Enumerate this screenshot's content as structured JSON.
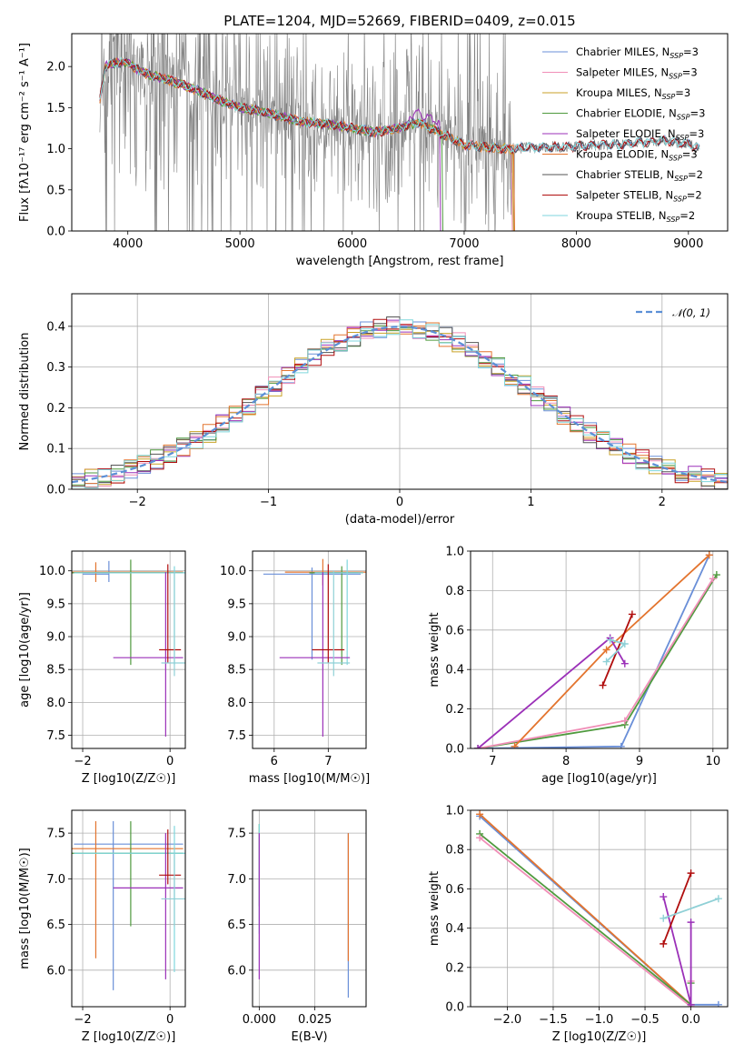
{
  "figure": {
    "title": "PLATE=1204, MJD=52669, FIBERID=0409, z=0.015"
  },
  "legend": {
    "entries": [
      {
        "name": "Chabrier MILES, N",
        "sub": "SSP",
        "tail": "=3",
        "color": "#6a8fd8"
      },
      {
        "name": "Salpeter MILES, N",
        "sub": "SSP",
        "tail": "=3",
        "color": "#f08fb8"
      },
      {
        "name": "Kroupa MILES, N",
        "sub": "SSP",
        "tail": "=3",
        "color": "#c9a227"
      },
      {
        "name": "Chabrier ELODIE, N",
        "sub": "SSP",
        "tail": "=3",
        "color": "#4f9a3e"
      },
      {
        "name": "Salpeter ELODIE, N",
        "sub": "SSP",
        "tail": "=3",
        "color": "#9b30b8"
      },
      {
        "name": "Kroupa ELODIE, N",
        "sub": "SSP",
        "tail": "=3",
        "color": "#e3742e"
      },
      {
        "name": "Chabrier STELIB, N",
        "sub": "SSP",
        "tail": "=2",
        "color": "#555555"
      },
      {
        "name": "Salpeter STELIB, N",
        "sub": "SSP",
        "tail": "=2",
        "color": "#b00d0d"
      },
      {
        "name": "Kroupa STELIB, N",
        "sub": "SSP",
        "tail": "=2",
        "color": "#7fd6dc"
      }
    ],
    "normal_label": "𝒩(0, 1)"
  },
  "chart_data": [
    {
      "id": "spectrum",
      "type": "line",
      "xlabel": "wavelength [Angstrom, rest frame]",
      "ylabel": "Flux [fλ10⁻¹⁷ erg cm⁻² s⁻¹ A⁻¹]",
      "xlim": [
        3500,
        9350
      ],
      "ylim": [
        0,
        2.4
      ],
      "xticks": [
        4000,
        5000,
        6000,
        7000,
        8000,
        9000
      ],
      "yticks": [
        0.0,
        0.5,
        1.0,
        1.5,
        2.0
      ],
      "data_color": "#808080",
      "continuum": {
        "x": [
          3750,
          3800,
          3900,
          4000,
          4100,
          4200,
          4400,
          4600,
          4800,
          5000,
          5200,
          5400,
          5600,
          5800,
          6000,
          6200,
          6400,
          6600,
          6800,
          7000,
          7200,
          7400,
          7600,
          7800,
          8000,
          8200,
          8400,
          8600,
          8800,
          9000,
          9100
        ],
        "y": [
          1.6,
          2.0,
          2.05,
          2.05,
          1.95,
          1.9,
          1.82,
          1.72,
          1.6,
          1.5,
          1.45,
          1.38,
          1.32,
          1.3,
          1.25,
          1.2,
          1.25,
          1.32,
          1.18,
          1.05,
          1.02,
          1.0,
          1.02,
          1.02,
          1.03,
          1.05,
          1.05,
          1.08,
          1.1,
          1.05,
          1.0
        ]
      }
    },
    {
      "id": "residuals",
      "type": "histogram",
      "xlabel": "(data-model)/error",
      "ylabel": "Normed distribution",
      "xlim": [
        -2.5,
        2.5
      ],
      "ylim": [
        0,
        0.48
      ],
      "xticks": [
        -2,
        -1,
        0,
        1,
        2
      ],
      "yticks": [
        0.0,
        0.1,
        0.2,
        0.3,
        0.4
      ],
      "bin_width": 0.1,
      "normal": {
        "mu": 0,
        "sigma": 1,
        "color": "#5b8fd6"
      }
    },
    {
      "id": "age_vs_Z",
      "type": "errorbar",
      "xlabel": "Z [log10(Z/Z☉)]",
      "ylabel": "age  [log10(age/yr)]",
      "xlim": [
        -2.25,
        0.35
      ],
      "ylim": [
        7.3,
        10.3
      ],
      "xticks": [
        -2,
        0
      ],
      "yticks": [
        7.5,
        8.0,
        8.5,
        9.0,
        9.5,
        10.0
      ],
      "points": [
        {
          "c": 0,
          "x": -1.4,
          "y": 9.95,
          "xe": [
            0.6,
            0.0
          ],
          "ye": [
            0.12,
            0.2
          ]
        },
        {
          "c": 5,
          "x": -1.7,
          "y": 9.98,
          "xe": [
            0.6,
            2.0
          ],
          "ye": [
            0.15,
            0.15
          ]
        },
        {
          "c": 3,
          "x": -0.9,
          "y": 9.97,
          "xe": [
            1.4,
            1.2
          ],
          "ye": [
            1.4,
            0.2
          ]
        },
        {
          "c": 8,
          "x": 0.1,
          "y": 9.97,
          "xe": [
            2.3,
            0.3
          ],
          "ye": [
            1.4,
            0.1
          ]
        },
        {
          "c": 4,
          "x": -0.1,
          "y": 8.68,
          "xe": [
            1.2,
            0.4
          ],
          "ye": [
            1.2,
            1.3
          ]
        },
        {
          "c": 7,
          "x": -0.05,
          "y": 8.8,
          "xe": [
            0.2,
            0.3
          ],
          "ye": [
            0.2,
            1.3
          ]
        },
        {
          "c": 9,
          "x": 0.1,
          "y": 8.6,
          "xe": [
            0.3,
            0.3
          ],
          "ye": [
            0.2,
            1.4
          ]
        }
      ]
    },
    {
      "id": "age_vs_mass",
      "type": "errorbar",
      "xlabel": "mass [log10(M/M☉)]",
      "ylabel": "",
      "xlim": [
        5.6,
        7.7
      ],
      "ylim": [
        7.3,
        10.3
      ],
      "xticks": [
        6,
        7
      ],
      "yticks": [
        7.5,
        8.0,
        8.5,
        9.0,
        9.5,
        10.0
      ],
      "points": [
        {
          "c": 0,
          "x": 6.7,
          "y": 9.95,
          "xe": [
            0.9,
            0.9
          ],
          "ye": [
            1.3,
            0.1
          ]
        },
        {
          "c": 5,
          "x": 6.9,
          "y": 9.98,
          "xe": [
            0.7,
            0.8
          ],
          "ye": [
            0.2,
            0.2
          ]
        },
        {
          "c": 3,
          "x": 7.25,
          "y": 9.97,
          "xe": [
            0.6,
            0.3
          ],
          "ye": [
            1.4,
            0.1
          ]
        },
        {
          "c": 8,
          "x": 7.35,
          "y": 9.97,
          "xe": [
            0.6,
            0.3
          ],
          "ye": [
            1.4,
            0.2
          ]
        },
        {
          "c": 4,
          "x": 6.9,
          "y": 8.68,
          "xe": [
            0.8,
            0.5
          ],
          "ye": [
            1.2,
            1.3
          ]
        },
        {
          "c": 7,
          "x": 7.0,
          "y": 8.8,
          "xe": [
            0.3,
            0.3
          ],
          "ye": [
            0.2,
            1.3
          ]
        },
        {
          "c": 9,
          "x": 7.1,
          "y": 8.6,
          "xe": [
            0.3,
            0.3
          ],
          "ye": [
            0.2,
            1.4
          ]
        }
      ]
    },
    {
      "id": "weight_vs_age",
      "type": "line",
      "xlabel": "age  [log10(age/yr)]",
      "ylabel": "mass weight",
      "xlim": [
        6.7,
        10.2
      ],
      "ylim": [
        0,
        1.0
      ],
      "xticks": [
        7,
        8,
        9,
        10
      ],
      "yticks": [
        0.0,
        0.2,
        0.4,
        0.6,
        0.8,
        1.0
      ],
      "series": [
        {
          "c": 0,
          "x": [
            6.8,
            8.75,
            9.95
          ],
          "y": [
            0.0,
            0.01,
            0.98
          ]
        },
        {
          "c": 3,
          "x": [
            6.8,
            8.8,
            10.05
          ],
          "y": [
            0.0,
            0.12,
            0.88
          ]
        },
        {
          "c": 1,
          "x": [
            6.8,
            8.8,
            10.0
          ],
          "y": [
            0.0,
            0.14,
            0.86
          ]
        },
        {
          "c": 5,
          "x": [
            7.3,
            8.55,
            9.95
          ],
          "y": [
            0.01,
            0.5,
            0.98
          ]
        },
        {
          "c": 4,
          "x": [
            6.8,
            8.6,
            8.8
          ],
          "y": [
            0.0,
            0.56,
            0.43
          ]
        },
        {
          "c": 7,
          "x": [
            8.5,
            8.9
          ],
          "y": [
            0.32,
            0.68
          ]
        },
        {
          "c": 9,
          "x": [
            8.6,
            8.8,
            8.55
          ],
          "y": [
            0.55,
            0.53,
            0.44
          ]
        }
      ]
    },
    {
      "id": "mass_vs_Z",
      "type": "errorbar",
      "xlabel": "Z [log10(Z/Z☉)]",
      "ylabel": "mass [log10(M/M☉)]",
      "xlim": [
        -2.25,
        0.35
      ],
      "ylim": [
        5.6,
        7.75
      ],
      "xticks": [
        -2,
        0
      ],
      "yticks": [
        6.0,
        6.5,
        7.0,
        7.5
      ],
      "points": [
        {
          "c": 0,
          "x": -1.3,
          "y": 7.38,
          "xe": [
            0.9,
            1.6
          ],
          "ye": [
            1.6,
            0.25
          ]
        },
        {
          "c": 5,
          "x": -1.7,
          "y": 7.33,
          "xe": [
            0.6,
            2.0
          ],
          "ye": [
            1.2,
            0.3
          ]
        },
        {
          "c": 3,
          "x": -0.9,
          "y": 7.28,
          "xe": [
            1.4,
            1.2
          ],
          "ye": [
            0.8,
            0.35
          ]
        },
        {
          "c": 8,
          "x": 0.1,
          "y": 7.28,
          "xe": [
            2.3,
            0.3
          ],
          "ye": [
            1.3,
            0.3
          ]
        },
        {
          "c": 4,
          "x": -0.1,
          "y": 6.9,
          "xe": [
            1.2,
            0.4
          ],
          "ye": [
            1.0,
            0.6
          ]
        },
        {
          "c": 7,
          "x": -0.05,
          "y": 7.04,
          "xe": [
            0.2,
            0.3
          ],
          "ye": [
            0.1,
            0.5
          ]
        },
        {
          "c": 9,
          "x": 0.1,
          "y": 6.78,
          "xe": [
            0.3,
            0.3
          ],
          "ye": [
            0.3,
            0.5
          ]
        }
      ]
    },
    {
      "id": "mass_vs_EBV",
      "type": "errorbar",
      "xlabel": "E(B-V)",
      "ylabel": "",
      "xlim": [
        -0.003,
        0.048
      ],
      "ylim": [
        5.6,
        7.75
      ],
      "xticks": [
        0.0,
        0.025
      ],
      "xtick_labels": [
        "0.000",
        "0.025"
      ],
      "yticks": [
        6.0,
        6.5,
        7.0,
        7.5
      ],
      "points": [
        {
          "c": 0,
          "x": 0.04,
          "y": 6.9,
          "xe": [
            0,
            0
          ],
          "ye": [
            1.2,
            0.6
          ]
        },
        {
          "c": 5,
          "x": 0.04,
          "y": 7.0,
          "xe": [
            0,
            0
          ],
          "ye": [
            0.9,
            0.5
          ]
        },
        {
          "c": 3,
          "x": 0.0,
          "y": 7.2,
          "xe": [
            0,
            0
          ],
          "ye": [
            0.5,
            0.4
          ]
        },
        {
          "c": 8,
          "x": 0.0,
          "y": 7.1,
          "xe": [
            0,
            0
          ],
          "ye": [
            0.7,
            0.5
          ]
        },
        {
          "c": 4,
          "x": 0.0,
          "y": 6.8,
          "xe": [
            0,
            0
          ],
          "ye": [
            0.9,
            0.7
          ]
        }
      ]
    },
    {
      "id": "weight_vs_Z",
      "type": "line",
      "xlabel": "Z [log10(Z/Z☉)]",
      "ylabel": "mass weight",
      "xlim": [
        -2.4,
        0.4
      ],
      "ylim": [
        0,
        1.0
      ],
      "xticks": [
        -2.0,
        -1.5,
        -1.0,
        -0.5,
        0.0
      ],
      "yticks": [
        0.0,
        0.2,
        0.4,
        0.6,
        0.8,
        1.0
      ],
      "series": [
        {
          "c": 0,
          "x": [
            -2.3,
            0.0,
            0.3
          ],
          "y": [
            0.97,
            0.01,
            0.01
          ]
        },
        {
          "c": 5,
          "x": [
            -2.3,
            0.0
          ],
          "y": [
            0.98,
            0.01
          ]
        },
        {
          "c": 3,
          "x": [
            -2.3,
            0.0,
            0.0
          ],
          "y": [
            0.88,
            0.01,
            0.12
          ]
        },
        {
          "c": 1,
          "x": [
            -2.3,
            0.0,
            0.0
          ],
          "y": [
            0.86,
            0.0,
            0.13
          ]
        },
        {
          "c": 4,
          "x": [
            -0.3,
            0.0,
            0.0
          ],
          "y": [
            0.56,
            0.01,
            0.43
          ]
        },
        {
          "c": 7,
          "x": [
            -0.3,
            0.0
          ],
          "y": [
            0.32,
            0.68
          ]
        },
        {
          "c": 9,
          "x": [
            -0.3,
            0.3
          ],
          "y": [
            0.45,
            0.55
          ]
        }
      ]
    }
  ]
}
